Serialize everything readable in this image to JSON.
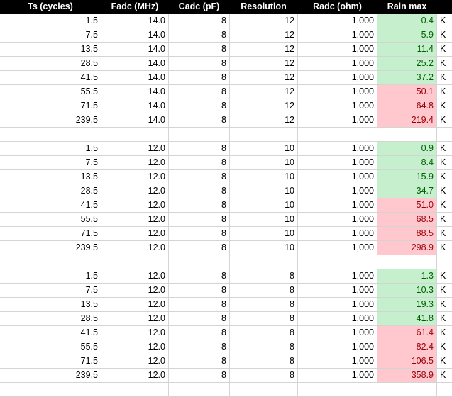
{
  "header": {
    "ts": "Ts (cycles)",
    "fadc": "Fadc (MHz)",
    "cadc": "Cadc (pF)",
    "resolution": "Resolution",
    "radc": "Radc (ohm)",
    "rain": "Rain max",
    "unit_col": ""
  },
  "unit_label": "K",
  "groups": [
    {
      "rows": [
        {
          "ts": "1.5",
          "fadc": "14.0",
          "cadc": "8",
          "res": "12",
          "radc": "1,000",
          "rain": "0.4",
          "status": "ok"
        },
        {
          "ts": "7.5",
          "fadc": "14.0",
          "cadc": "8",
          "res": "12",
          "radc": "1,000",
          "rain": "5.9",
          "status": "ok"
        },
        {
          "ts": "13.5",
          "fadc": "14.0",
          "cadc": "8",
          "res": "12",
          "radc": "1,000",
          "rain": "11.4",
          "status": "ok"
        },
        {
          "ts": "28.5",
          "fadc": "14.0",
          "cadc": "8",
          "res": "12",
          "radc": "1,000",
          "rain": "25.2",
          "status": "ok"
        },
        {
          "ts": "41.5",
          "fadc": "14.0",
          "cadc": "8",
          "res": "12",
          "radc": "1,000",
          "rain": "37.2",
          "status": "ok"
        },
        {
          "ts": "55.5",
          "fadc": "14.0",
          "cadc": "8",
          "res": "12",
          "radc": "1,000",
          "rain": "50.1",
          "status": "bad"
        },
        {
          "ts": "71.5",
          "fadc": "14.0",
          "cadc": "8",
          "res": "12",
          "radc": "1,000",
          "rain": "64.8",
          "status": "bad"
        },
        {
          "ts": "239.5",
          "fadc": "14.0",
          "cadc": "8",
          "res": "12",
          "radc": "1,000",
          "rain": "219.4",
          "status": "bad"
        }
      ]
    },
    {
      "rows": [
        {
          "ts": "1.5",
          "fadc": "12.0",
          "cadc": "8",
          "res": "10",
          "radc": "1,000",
          "rain": "0.9",
          "status": "ok"
        },
        {
          "ts": "7.5",
          "fadc": "12.0",
          "cadc": "8",
          "res": "10",
          "radc": "1,000",
          "rain": "8.4",
          "status": "ok"
        },
        {
          "ts": "13.5",
          "fadc": "12.0",
          "cadc": "8",
          "res": "10",
          "radc": "1,000",
          "rain": "15.9",
          "status": "ok"
        },
        {
          "ts": "28.5",
          "fadc": "12.0",
          "cadc": "8",
          "res": "10",
          "radc": "1,000",
          "rain": "34.7",
          "status": "ok"
        },
        {
          "ts": "41.5",
          "fadc": "12.0",
          "cadc": "8",
          "res": "10",
          "radc": "1,000",
          "rain": "51.0",
          "status": "bad"
        },
        {
          "ts": "55.5",
          "fadc": "12.0",
          "cadc": "8",
          "res": "10",
          "radc": "1,000",
          "rain": "68.5",
          "status": "bad"
        },
        {
          "ts": "71.5",
          "fadc": "12.0",
          "cadc": "8",
          "res": "10",
          "radc": "1,000",
          "rain": "88.5",
          "status": "bad"
        },
        {
          "ts": "239.5",
          "fadc": "12.0",
          "cadc": "8",
          "res": "10",
          "radc": "1,000",
          "rain": "298.9",
          "status": "bad"
        }
      ]
    },
    {
      "rows": [
        {
          "ts": "1.5",
          "fadc": "12.0",
          "cadc": "8",
          "res": "8",
          "radc": "1,000",
          "rain": "1.3",
          "status": "ok"
        },
        {
          "ts": "7.5",
          "fadc": "12.0",
          "cadc": "8",
          "res": "8",
          "radc": "1,000",
          "rain": "10.3",
          "status": "ok"
        },
        {
          "ts": "13.5",
          "fadc": "12.0",
          "cadc": "8",
          "res": "8",
          "radc": "1,000",
          "rain": "19.3",
          "status": "ok"
        },
        {
          "ts": "28.5",
          "fadc": "12.0",
          "cadc": "8",
          "res": "8",
          "radc": "1,000",
          "rain": "41.8",
          "status": "ok"
        },
        {
          "ts": "41.5",
          "fadc": "12.0",
          "cadc": "8",
          "res": "8",
          "radc": "1,000",
          "rain": "61.4",
          "status": "bad"
        },
        {
          "ts": "55.5",
          "fadc": "12.0",
          "cadc": "8",
          "res": "8",
          "radc": "1,000",
          "rain": "82.4",
          "status": "bad"
        },
        {
          "ts": "71.5",
          "fadc": "12.0",
          "cadc": "8",
          "res": "8",
          "radc": "1,000",
          "rain": "106.5",
          "status": "bad"
        },
        {
          "ts": "239.5",
          "fadc": "12.0",
          "cadc": "8",
          "res": "8",
          "radc": "1,000",
          "rain": "358.9",
          "status": "bad"
        }
      ]
    }
  ],
  "colors": {
    "header_bg": "#000000",
    "header_text": "#ffffff",
    "ok_fill": "#c6efce",
    "ok_text": "#006100",
    "bad_fill": "#ffc7ce",
    "bad_text": "#9c0006",
    "gridline": "#d4d4d4"
  }
}
